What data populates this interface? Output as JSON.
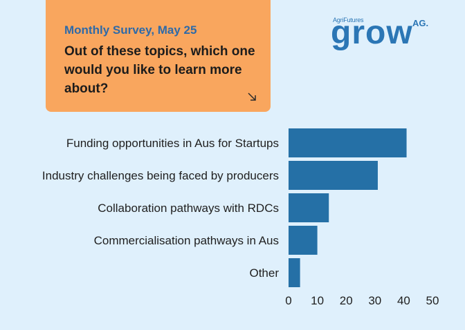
{
  "card": {
    "date": "Monthly Survey, May 25",
    "question": "Out of these topics, which one would you like to learn more about?"
  },
  "logo": {
    "brand": "AgriFutures",
    "word": "grow",
    "sup": "AG."
  },
  "colors": {
    "background": "#dff0fc",
    "card": "#f9a65e",
    "bar": "#2570a6",
    "accent": "#2e6aa8"
  },
  "chart_data": {
    "type": "bar",
    "orientation": "horizontal",
    "categories": [
      "Funding opportunities in Aus for Startups",
      "Industry challenges being faced by producers",
      "Collaboration pathways with RDCs",
      "Commercialisation pathways in Aus",
      "Other"
    ],
    "values": [
      41,
      31,
      14,
      10,
      4
    ],
    "xlim": [
      0,
      50
    ],
    "xticks": [
      0,
      10,
      20,
      30,
      40,
      50
    ],
    "title": "",
    "xlabel": "",
    "ylabel": "",
    "grid": false
  }
}
